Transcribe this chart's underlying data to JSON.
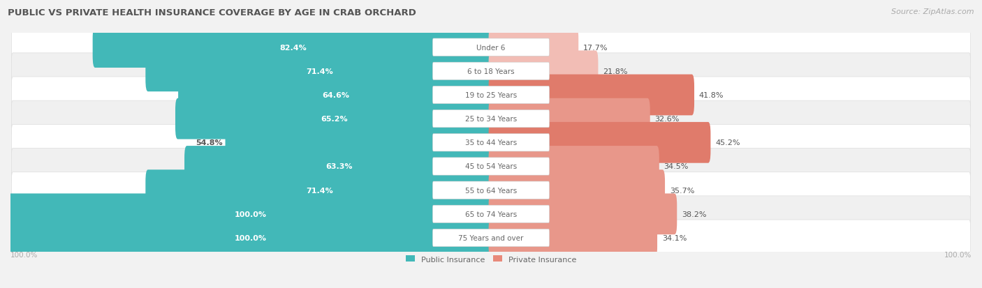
{
  "title": "PUBLIC VS PRIVATE HEALTH INSURANCE COVERAGE BY AGE IN CRAB ORCHARD",
  "source": "Source: ZipAtlas.com",
  "categories": [
    "Under 6",
    "6 to 18 Years",
    "19 to 25 Years",
    "25 to 34 Years",
    "35 to 44 Years",
    "45 to 54 Years",
    "55 to 64 Years",
    "65 to 74 Years",
    "75 Years and over"
  ],
  "public_values": [
    82.4,
    71.4,
    64.6,
    65.2,
    54.8,
    63.3,
    71.4,
    100.0,
    100.0
  ],
  "private_values": [
    17.7,
    21.8,
    41.8,
    32.6,
    45.2,
    34.5,
    35.7,
    38.2,
    34.1
  ],
  "public_color": "#42b8b8",
  "private_color": "#e8897a",
  "private_color_light": "#f0b8b0",
  "private_colors": [
    "#f0b8b0",
    "#f0b8b0",
    "#e8897a",
    "#e8a090",
    "#e8897a",
    "#e8a090",
    "#e8a090",
    "#e8a090",
    "#e8a090"
  ],
  "bg_color": "#f2f2f2",
  "row_bg_colors": [
    "#ffffff",
    "#f0f0f0"
  ],
  "label_white": "#ffffff",
  "label_dark": "#555555",
  "center_label_color": "#666666",
  "axis_label_color": "#aaaaaa",
  "title_color": "#555555",
  "source_color": "#aaaaaa",
  "title_fontsize": 9.5,
  "source_fontsize": 8,
  "bar_label_fontsize": 8,
  "cat_label_fontsize": 7.5,
  "axis_label_fontsize": 7.5,
  "legend_fontsize": 8
}
